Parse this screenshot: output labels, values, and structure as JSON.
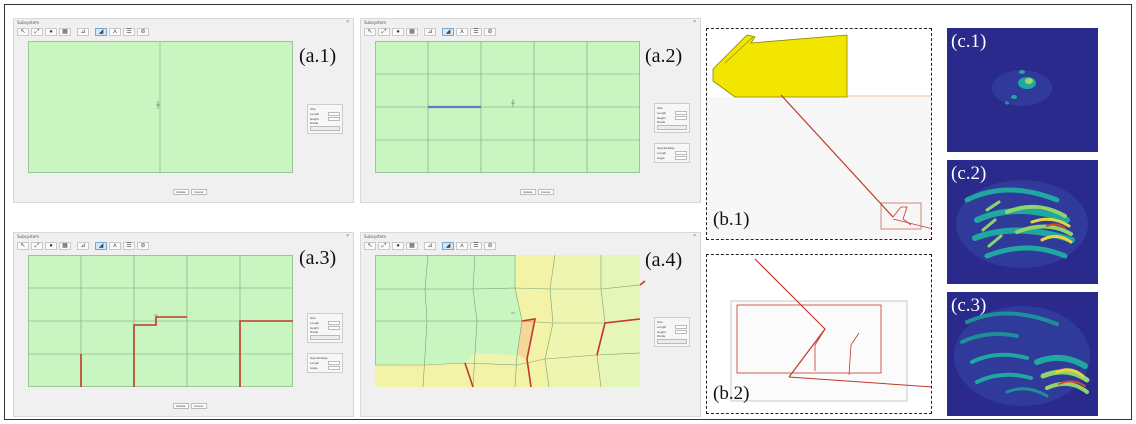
{
  "app": {
    "window_title": "Subsystem",
    "close_glyph": "×",
    "toolbar": [
      {
        "icon": "pointer-icon",
        "glyph": "↖"
      },
      {
        "icon": "zoom-fit-icon",
        "glyph": "⤢"
      },
      {
        "icon": "material-icon",
        "glyph": "●"
      },
      {
        "icon": "grid-icon",
        "glyph": "▦"
      },
      {
        "icon": "measure-icon",
        "glyph": "⊿"
      },
      {
        "icon": "mesh-icon",
        "glyph": "◢"
      },
      {
        "icon": "split-icon",
        "glyph": "⋏"
      },
      {
        "icon": "layers-icon",
        "glyph": "☰"
      },
      {
        "icon": "link-icon",
        "glyph": "⊘"
      }
    ],
    "buttons": {
      "update": "Update",
      "cancel": "Cancel"
    }
  },
  "panels": {
    "size": {
      "title": "Size",
      "length_label": "Length",
      "height_label": "Height",
      "length_value": "0.300",
      "height_value": "0.200"
    },
    "divide": {
      "title": "Divide",
      "button": "OK"
    },
    "special_edge": {
      "title": "Special Edge",
      "length_label": "Length",
      "angle_label": "Angle",
      "length_value": "0.060",
      "angle_value": "0"
    }
  },
  "windows": [
    {
      "label": "(a.1)",
      "active_tool": 5
    },
    {
      "label": "(a.2)",
      "active_tool": 5
    },
    {
      "label": "(a.3)",
      "active_tool": 5
    },
    {
      "label": "(a.4)",
      "active_tool": 5
    }
  ],
  "b_panels": [
    {
      "label": "(b.1)"
    },
    {
      "label": "(b.2)"
    }
  ],
  "c_panels": [
    {
      "label": "(c.1)"
    },
    {
      "label": "(c.2)"
    },
    {
      "label": "(c.3)"
    }
  ],
  "colors": {
    "mesh_fill": "#c8f5c0",
    "crack_red": "#c0392b",
    "crack_blue": "#5b7fc4",
    "yellow_elem": "#f3f3a8",
    "orange_elem": "#f6d79a",
    "tool_yellow": "#f2e600",
    "heat_bg": "#2a2a8c"
  }
}
